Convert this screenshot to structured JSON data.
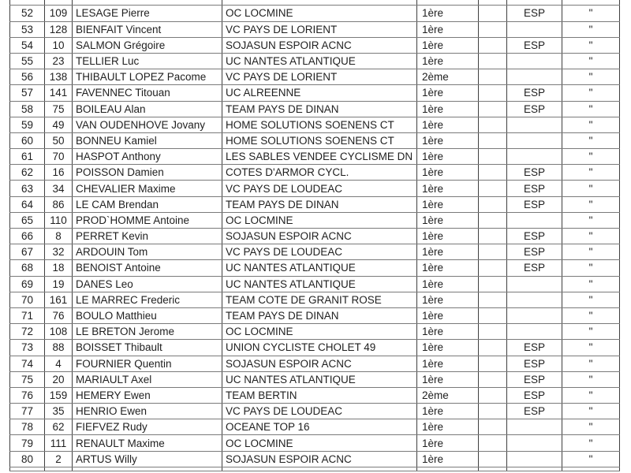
{
  "table": {
    "description": "Race classification rows 52-80",
    "category_values": [
      "1ère",
      "2ème"
    ],
    "espoir_flag": "ESP",
    "ditto_mark": "\"",
    "border_colors": {
      "horizontal": "#7a7a7a",
      "vertical": "#3f3f3f"
    },
    "rows": [
      {
        "rank": "52",
        "bib": "109",
        "name": "LESAGE Pierre",
        "club": "OC LOCMINE",
        "category": "1ère",
        "spacer": "",
        "esp": "ESP",
        "ditto": "\""
      },
      {
        "rank": "53",
        "bib": "128",
        "name": "BIENFAIT Vincent",
        "club": "VC PAYS DE LORIENT",
        "category": "1ère",
        "spacer": "",
        "esp": "",
        "ditto": "\""
      },
      {
        "rank": "54",
        "bib": "10",
        "name": "SALMON Grégoire",
        "club": "SOJASUN ESPOIR ACNC",
        "category": "1ère",
        "spacer": "",
        "esp": "ESP",
        "ditto": "\""
      },
      {
        "rank": "55",
        "bib": "23",
        "name": "TELLIER Luc",
        "club": "UC NANTES ATLANTIQUE",
        "category": "1ère",
        "spacer": "",
        "esp": "",
        "ditto": "\""
      },
      {
        "rank": "56",
        "bib": "138",
        "name": "THIBAULT LOPEZ Pacome",
        "club": "VC PAYS DE LORIENT",
        "category": "2ème",
        "spacer": "",
        "esp": "",
        "ditto": "\""
      },
      {
        "rank": "57",
        "bib": "141",
        "name": "FAVENNEC Titouan",
        "club": "UC ALREENNE",
        "category": "1ère",
        "spacer": "",
        "esp": "ESP",
        "ditto": "\""
      },
      {
        "rank": "58",
        "bib": "75",
        "name": "BOILEAU Alan",
        "club": "TEAM PAYS DE DINAN",
        "category": "1ère",
        "spacer": "",
        "esp": "ESP",
        "ditto": "\""
      },
      {
        "rank": "59",
        "bib": "49",
        "name": "VAN OUDENHOVE Jovany",
        "club": "HOME SOLUTIONS SOENENS CT",
        "category": "1ère",
        "spacer": "",
        "esp": "",
        "ditto": "\""
      },
      {
        "rank": "60",
        "bib": "50",
        "name": "BONNEU Kamiel",
        "club": "HOME SOLUTIONS SOENENS CT",
        "category": "1ère",
        "spacer": "",
        "esp": "",
        "ditto": "\""
      },
      {
        "rank": "61",
        "bib": "70",
        "name": "HASPOT Anthony",
        "club": "LES SABLES VENDEE CYCLISME DN",
        "category": "1ère",
        "spacer": "",
        "esp": "",
        "ditto": "\""
      },
      {
        "rank": "62",
        "bib": "16",
        "name": "POISSON Damien",
        "club": "COTES D'ARMOR CYCL.",
        "category": "1ère",
        "spacer": "",
        "esp": "ESP",
        "ditto": "\""
      },
      {
        "rank": "63",
        "bib": "34",
        "name": "CHEVALIER Maxime",
        "club": "VC PAYS DE LOUDEAC",
        "category": "1ère",
        "spacer": "",
        "esp": "ESP",
        "ditto": "\""
      },
      {
        "rank": "64",
        "bib": "86",
        "name": "LE CAM Brendan",
        "club": "TEAM PAYS DE DINAN",
        "category": "1ère",
        "spacer": "",
        "esp": "ESP",
        "ditto": "\""
      },
      {
        "rank": "65",
        "bib": "110",
        "name": "PROD`HOMME Antoine",
        "club": "OC LOCMINE",
        "category": "1ère",
        "spacer": "",
        "esp": "",
        "ditto": "\""
      },
      {
        "rank": "66",
        "bib": "8",
        "name": "PERRET Kevin",
        "club": "SOJASUN ESPOIR ACNC",
        "category": "1ère",
        "spacer": "",
        "esp": "ESP",
        "ditto": "\""
      },
      {
        "rank": "67",
        "bib": "32",
        "name": "ARDOUIN Tom",
        "club": "VC PAYS DE LOUDEAC",
        "category": "1ère",
        "spacer": "",
        "esp": "ESP",
        "ditto": "\""
      },
      {
        "rank": "68",
        "bib": "18",
        "name": "BENOIST Antoine",
        "club": "UC NANTES ATLANTIQUE",
        "category": "1ère",
        "spacer": "",
        "esp": "ESP",
        "ditto": "\""
      },
      {
        "rank": "69",
        "bib": "19",
        "name": "DANES Leo",
        "club": "UC NANTES ATLANTIQUE",
        "category": "1ère",
        "spacer": "",
        "esp": "",
        "ditto": "\""
      },
      {
        "rank": "70",
        "bib": "161",
        "name": "LE MARREC Frederic",
        "club": "TEAM COTE DE GRANIT ROSE",
        "category": "1ère",
        "spacer": "",
        "esp": "",
        "ditto": "\""
      },
      {
        "rank": "71",
        "bib": "76",
        "name": "BOULO Matthieu",
        "club": "TEAM PAYS DE DINAN",
        "category": "1ère",
        "spacer": "",
        "esp": "",
        "ditto": "\""
      },
      {
        "rank": "72",
        "bib": "108",
        "name": "LE BRETON Jerome",
        "club": "OC LOCMINE",
        "category": "1ère",
        "spacer": "",
        "esp": "",
        "ditto": "\""
      },
      {
        "rank": "73",
        "bib": "88",
        "name": "BOISSET Thibault",
        "club": "UNION CYCLISTE CHOLET 49",
        "category": "1ère",
        "spacer": "",
        "esp": "ESP",
        "ditto": "\""
      },
      {
        "rank": "74",
        "bib": "4",
        "name": "FOURNIER Quentin",
        "club": "SOJASUN ESPOIR ACNC",
        "category": "1ère",
        "spacer": "",
        "esp": "ESP",
        "ditto": "\""
      },
      {
        "rank": "75",
        "bib": "20",
        "name": "MARIAULT Axel",
        "club": "UC NANTES ATLANTIQUE",
        "category": "1ère",
        "spacer": "",
        "esp": "ESP",
        "ditto": "\""
      },
      {
        "rank": "76",
        "bib": "159",
        "name": "HEMERY Ewen",
        "club": "TEAM BERTIN",
        "category": "2ème",
        "spacer": "",
        "esp": "ESP",
        "ditto": "\""
      },
      {
        "rank": "77",
        "bib": "35",
        "name": "HENRIO Ewen",
        "club": "VC PAYS DE LOUDEAC",
        "category": "1ère",
        "spacer": "",
        "esp": "ESP",
        "ditto": "\""
      },
      {
        "rank": "78",
        "bib": "62",
        "name": "FIEFVEZ Rudy",
        "club": "OCEANE TOP 16",
        "category": "1ère",
        "spacer": "",
        "esp": "",
        "ditto": "\""
      },
      {
        "rank": "79",
        "bib": "111",
        "name": "RENAULT Maxime",
        "club": "OC LOCMINE",
        "category": "1ère",
        "spacer": "",
        "esp": "",
        "ditto": "\""
      },
      {
        "rank": "80",
        "bib": "2",
        "name": "ARTUS Willy",
        "club": "SOJASUN ESPOIR ACNC",
        "category": "1ère",
        "spacer": "",
        "esp": "",
        "ditto": "\""
      }
    ]
  }
}
